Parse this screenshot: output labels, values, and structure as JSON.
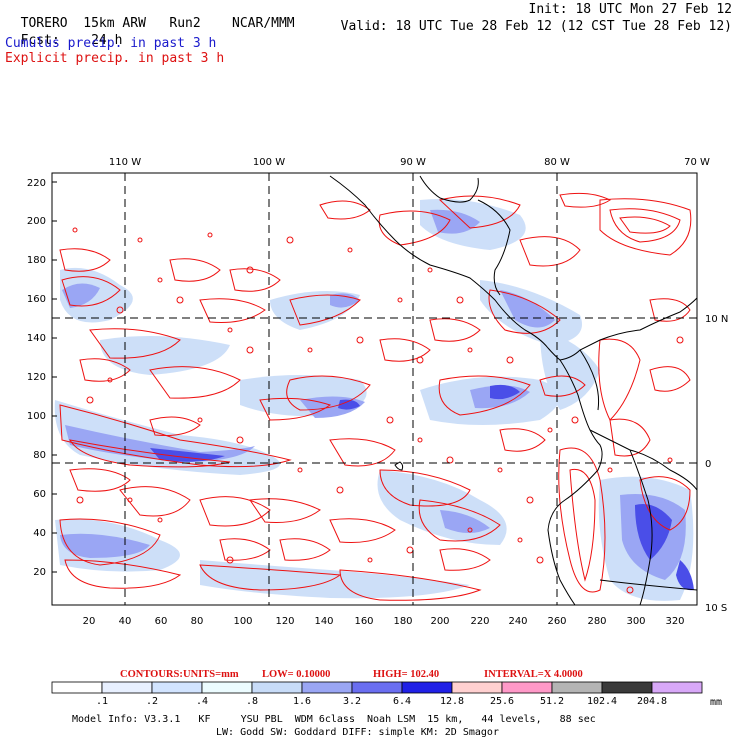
{
  "header": {
    "model": "TORERO",
    "resolution": "15km ARW",
    "run": "Run2",
    "org": "NCAR/MMM",
    "init": "Init: 18 UTC Mon 27 Feb 12",
    "fcst_label": "Fcst:",
    "fcst_value": "24 h",
    "valid": "Valid: 18 UTC Tue 28 Feb 12 (12 CST Tue 28 Feb 12)"
  },
  "legend": {
    "cumulus": "Cumulus precip. in past 3 h",
    "explicit": "Explicit precip. in past 3 h",
    "cumulus_color": "#1a1acc",
    "explicit_color": "#dd1111"
  },
  "map": {
    "lon_labels": [
      "110 W",
      "100 W",
      "90 W",
      "80 W",
      "70 W"
    ],
    "lat_labels": [
      "10 N",
      "0",
      "10 S"
    ],
    "y_ticks": [
      "220",
      "200",
      "180",
      "160",
      "140",
      "120",
      "100",
      "80",
      "60",
      "40",
      "20"
    ],
    "x_ticks": [
      "20",
      "40",
      "60",
      "80",
      "100",
      "120",
      "140",
      "160",
      "180",
      "200",
      "220",
      "240",
      "260",
      "280",
      "300",
      "320"
    ]
  },
  "contours": {
    "label": "CONTOURS:",
    "units": "UNITS=mm",
    "low": "LOW= 0.10000",
    "high": "HIGH= 102.40",
    "interval": "INTERVAL=X 4.0000"
  },
  "colorbar": {
    "labels": [
      ".1",
      ".2",
      ".4",
      ".8",
      "1.6",
      "3.2",
      "6.4",
      "12.8",
      "25.6",
      "51.2",
      "102.4",
      "204.8"
    ],
    "unit": "mm",
    "colors": [
      "#ffffff",
      "#e8f0ff",
      "#d2e4ff",
      "#ecfcff",
      "#c8dcf8",
      "#9aa6f4",
      "#6a6ef0",
      "#2020e6",
      "#ffd0d0",
      "#ff99c8",
      "#b4b4b4",
      "#3a3a3a",
      "#d8a8f8"
    ]
  },
  "footer": {
    "line1": "Model Info: V3.3.1   KF     YSU PBL  WDM 6class  Noah LSM  15 km,   44 levels,   88 sec",
    "line2": "LW: Godd SW: Goddard DIFF: simple KM: 2D Smagor"
  }
}
